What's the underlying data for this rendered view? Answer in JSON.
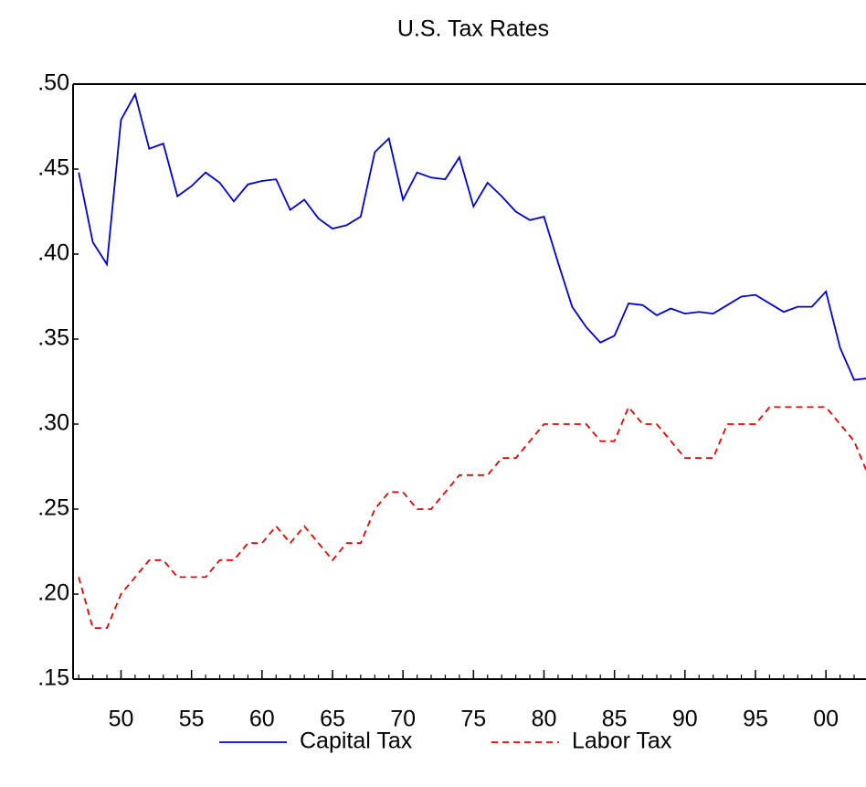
{
  "chart_data": {
    "type": "line",
    "title": "U.S. Tax Rates",
    "x": [
      1947,
      1948,
      1949,
      1950,
      1951,
      1952,
      1953,
      1954,
      1955,
      1956,
      1957,
      1958,
      1959,
      1960,
      1961,
      1962,
      1963,
      1964,
      1965,
      1966,
      1967,
      1968,
      1969,
      1970,
      1971,
      1972,
      1973,
      1974,
      1975,
      1976,
      1977,
      1978,
      1979,
      1980,
      1981,
      1982,
      1983,
      1984,
      1985,
      1986,
      1987,
      1988,
      1989,
      1990,
      1991,
      1992,
      1993,
      1994,
      1995,
      1996,
      1997,
      1998,
      1999,
      2000,
      2001,
      2002,
      2003
    ],
    "series": [
      {
        "name": "Capital Tax",
        "color": "#0000dd",
        "dash": false,
        "values": [
          0.448,
          0.407,
          0.394,
          0.479,
          0.494,
          0.462,
          0.465,
          0.434,
          0.44,
          0.448,
          0.442,
          0.431,
          0.441,
          0.443,
          0.444,
          0.426,
          0.432,
          0.421,
          0.415,
          0.417,
          0.422,
          0.46,
          0.468,
          0.432,
          0.448,
          0.445,
          0.444,
          0.457,
          0.428,
          0.442,
          0.434,
          0.425,
          0.42,
          0.422,
          0.395,
          0.369,
          0.357,
          0.348,
          0.352,
          0.371,
          0.37,
          0.364,
          0.368,
          0.365,
          0.366,
          0.365,
          0.37,
          0.375,
          0.376,
          0.371,
          0.366,
          0.369,
          0.369,
          0.378,
          0.345,
          0.326,
          0.327
        ]
      },
      {
        "name": "Labor Tax",
        "color": "#ee0000",
        "dash": true,
        "values": [
          0.21,
          0.18,
          0.18,
          0.2,
          0.21,
          0.22,
          0.22,
          0.21,
          0.21,
          0.21,
          0.22,
          0.22,
          0.23,
          0.23,
          0.24,
          0.23,
          0.24,
          0.23,
          0.22,
          0.23,
          0.23,
          0.25,
          0.26,
          0.26,
          0.25,
          0.25,
          0.26,
          0.27,
          0.27,
          0.27,
          0.28,
          0.28,
          0.29,
          0.3,
          0.3,
          0.3,
          0.3,
          0.29,
          0.29,
          0.31,
          0.3,
          0.3,
          0.29,
          0.28,
          0.28,
          0.28,
          0.3,
          0.3,
          0.3,
          0.31,
          0.31,
          0.31,
          0.31,
          0.31,
          0.3,
          0.29,
          0.27
        ]
      }
    ],
    "xlim": [
      1946.6,
      2003.1
    ],
    "xticks": [
      {
        "value": 1950,
        "label": "50"
      },
      {
        "value": 1955,
        "label": "55"
      },
      {
        "value": 1960,
        "label": "60"
      },
      {
        "value": 1965,
        "label": "65"
      },
      {
        "value": 1970,
        "label": "70"
      },
      {
        "value": 1975,
        "label": "75"
      },
      {
        "value": 1980,
        "label": "80"
      },
      {
        "value": 1985,
        "label": "85"
      },
      {
        "value": 1990,
        "label": "90"
      },
      {
        "value": 1995,
        "label": "95"
      },
      {
        "value": 2000,
        "label": "00"
      }
    ],
    "ylim": [
      0.15,
      0.5
    ],
    "yticks": [
      {
        "value": 0.15,
        "label": ".15"
      },
      {
        "value": 0.2,
        "label": ".20"
      },
      {
        "value": 0.25,
        "label": ".25"
      },
      {
        "value": 0.3,
        "label": ".30"
      },
      {
        "value": 0.35,
        "label": ".35"
      },
      {
        "value": 0.4,
        "label": ".40"
      },
      {
        "value": 0.45,
        "label": ".45"
      },
      {
        "value": 0.5,
        "label": ".50"
      }
    ],
    "legend": "bottom"
  }
}
